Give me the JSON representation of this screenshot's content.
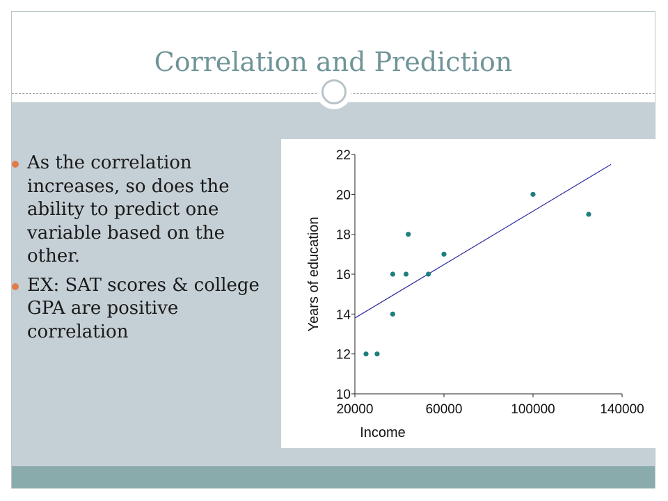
{
  "slide": {
    "title": "Correlation and Prediction",
    "accent_color": "#6f9498",
    "bullet_color": "#e27b4a",
    "bullets": [
      "As the correlation increases, so does the ability to predict one variable based on the other.",
      "EX: SAT scores & college GPA are positive correlation"
    ]
  },
  "chart_data": {
    "type": "scatter",
    "title": "",
    "xlabel": "Income",
    "ylabel": "Years of education",
    "xlim": [
      20000,
      140000
    ],
    "ylim": [
      10,
      22
    ],
    "xticks": [
      20000,
      60000,
      100000,
      140000
    ],
    "yticks": [
      10,
      12,
      14,
      16,
      18,
      20,
      22
    ],
    "grid": false,
    "point_color": "#1f7f7f",
    "line_color": "#2c2ca0",
    "points": [
      {
        "x": 25000,
        "y": 12
      },
      {
        "x": 30000,
        "y": 12
      },
      {
        "x": 37000,
        "y": 14
      },
      {
        "x": 37000,
        "y": 16
      },
      {
        "x": 43000,
        "y": 16
      },
      {
        "x": 44000,
        "y": 18
      },
      {
        "x": 53000,
        "y": 16
      },
      {
        "x": 60000,
        "y": 17
      },
      {
        "x": 100000,
        "y": 20
      },
      {
        "x": 125000,
        "y": 19
      }
    ],
    "trendline": [
      {
        "x": 20000,
        "y": 13.8
      },
      {
        "x": 135000,
        "y": 21.5
      }
    ]
  }
}
